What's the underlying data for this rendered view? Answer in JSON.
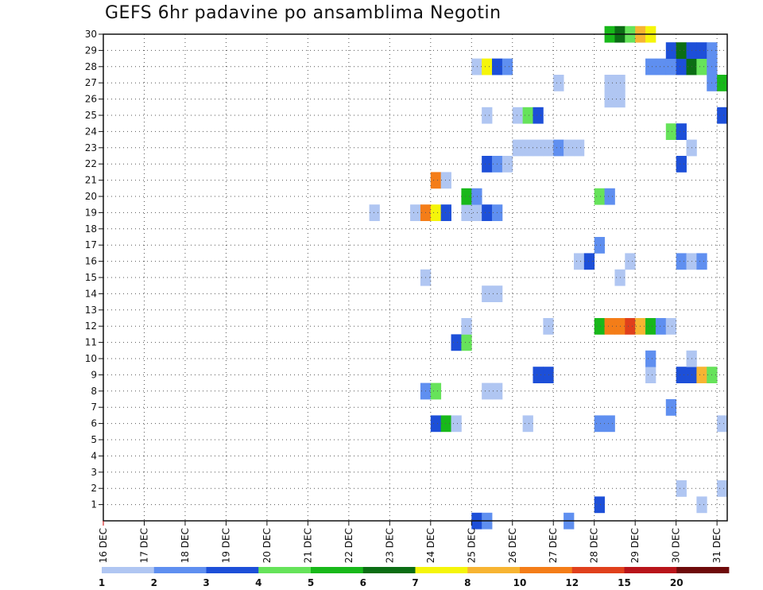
{
  "chart_data": {
    "type": "heatmap",
    "title": "GEFS 6hr padavine po ansamblima Negotin",
    "xlabel": "",
    "ylabel": "",
    "x_ticks": [
      "16 DEC",
      "17 DEC",
      "18 DEC",
      "19 DEC",
      "20 DEC",
      "21 DEC",
      "22 DEC",
      "23 DEC",
      "24 DEC",
      "25 DEC",
      "26 DEC",
      "27 DEC",
      "28 DEC",
      "29 DEC",
      "30 DEC",
      "31 DEC"
    ],
    "y_ticks": [
      1,
      2,
      3,
      4,
      5,
      6,
      7,
      8,
      9,
      10,
      11,
      12,
      13,
      14,
      15,
      16,
      17,
      18,
      19,
      20,
      21,
      22,
      23,
      24,
      25,
      26,
      27,
      28,
      29,
      30
    ],
    "xlim_days": [
      0,
      15.25
    ],
    "ylim": [
      0,
      30
    ],
    "grid": true,
    "colorbar": {
      "position": "bottom",
      "labels": [
        "1",
        "2",
        "3",
        "4",
        "5",
        "6",
        "7",
        "8",
        "10",
        "12",
        "15",
        "20"
      ],
      "colors": [
        "#b0c6f2",
        "#5f8ff0",
        "#1d4fd8",
        "#66e35a",
        "#18b81a",
        "#0b6d14",
        "#f5f50a",
        "#f7b432",
        "#f47d18",
        "#e0401c",
        "#b8141a",
        "#6e0a0a"
      ]
    },
    "cells_note": "member = ensemble member (1-30), start = days after 16 DEC 00z (6hr steps), class = 1-based colorbar class",
    "cells": [
      {
        "member": 0,
        "start": 9.0,
        "class": 3
      },
      {
        "member": 0,
        "start": 9.25,
        "class": 2
      },
      {
        "member": 0,
        "start": 11.25,
        "class": 2
      },
      {
        "member": 1,
        "start": 12.0,
        "class": 3
      },
      {
        "member": 1,
        "start": 14.5,
        "class": 1
      },
      {
        "member": 2,
        "start": 14.0,
        "class": 1
      },
      {
        "member": 2,
        "start": 15.0,
        "class": 1
      },
      {
        "member": 6,
        "start": 8.0,
        "class": 3
      },
      {
        "member": 6,
        "start": 8.25,
        "class": 5
      },
      {
        "member": 6,
        "start": 8.5,
        "class": 1
      },
      {
        "member": 6,
        "start": 10.25,
        "class": 1
      },
      {
        "member": 6,
        "start": 12.0,
        "class": 2
      },
      {
        "member": 6,
        "start": 12.25,
        "class": 2
      },
      {
        "member": 6,
        "start": 15.0,
        "class": 1
      },
      {
        "member": 7,
        "start": 13.75,
        "class": 2
      },
      {
        "member": 8,
        "start": 7.75,
        "class": 2
      },
      {
        "member": 8,
        "start": 8.0,
        "class": 4
      },
      {
        "member": 8,
        "start": 9.25,
        "class": 1
      },
      {
        "member": 8,
        "start": 9.5,
        "class": 1
      },
      {
        "member": 9,
        "start": 10.5,
        "class": 3
      },
      {
        "member": 9,
        "start": 10.75,
        "class": 3
      },
      {
        "member": 9,
        "start": 13.25,
        "class": 1
      },
      {
        "member": 9,
        "start": 14.0,
        "class": 3
      },
      {
        "member": 9,
        "start": 14.25,
        "class": 3
      },
      {
        "member": 9,
        "start": 14.5,
        "class": 8
      },
      {
        "member": 9,
        "start": 14.75,
        "class": 4
      },
      {
        "member": 10,
        "start": 13.25,
        "class": 2
      },
      {
        "member": 10,
        "start": 14.25,
        "class": 1
      },
      {
        "member": 11,
        "start": 8.5,
        "class": 3
      },
      {
        "member": 11,
        "start": 8.75,
        "class": 4
      },
      {
        "member": 12,
        "start": 8.75,
        "class": 1
      },
      {
        "member": 12,
        "start": 10.75,
        "class": 1
      },
      {
        "member": 12,
        "start": 12.0,
        "class": 5
      },
      {
        "member": 12,
        "start": 12.25,
        "class": 9
      },
      {
        "member": 12,
        "start": 12.5,
        "class": 9
      },
      {
        "member": 12,
        "start": 12.75,
        "class": 10
      },
      {
        "member": 12,
        "start": 13.0,
        "class": 8
      },
      {
        "member": 12,
        "start": 13.25,
        "class": 5
      },
      {
        "member": 12,
        "start": 13.5,
        "class": 2
      },
      {
        "member": 12,
        "start": 13.75,
        "class": 1
      },
      {
        "member": 14,
        "start": 9.25,
        "class": 1
      },
      {
        "member": 14,
        "start": 9.5,
        "class": 1
      },
      {
        "member": 15,
        "start": 7.75,
        "class": 1
      },
      {
        "member": 15,
        "start": 12.5,
        "class": 1
      },
      {
        "member": 16,
        "start": 11.5,
        "class": 1
      },
      {
        "member": 16,
        "start": 11.75,
        "class": 3
      },
      {
        "member": 16,
        "start": 12.75,
        "class": 1
      },
      {
        "member": 16,
        "start": 14.0,
        "class": 2
      },
      {
        "member": 16,
        "start": 14.25,
        "class": 1
      },
      {
        "member": 16,
        "start": 14.5,
        "class": 2
      },
      {
        "member": 17,
        "start": 12.0,
        "class": 2
      },
      {
        "member": 19,
        "start": 6.5,
        "class": 1
      },
      {
        "member": 19,
        "start": 7.5,
        "class": 1
      },
      {
        "member": 19,
        "start": 7.75,
        "class": 9
      },
      {
        "member": 19,
        "start": 8.0,
        "class": 7
      },
      {
        "member": 19,
        "start": 8.25,
        "class": 3
      },
      {
        "member": 19,
        "start": 8.75,
        "class": 1
      },
      {
        "member": 19,
        "start": 9.0,
        "class": 1
      },
      {
        "member": 19,
        "start": 9.25,
        "class": 3
      },
      {
        "member": 19,
        "start": 9.5,
        "class": 2
      },
      {
        "member": 20,
        "start": 8.75,
        "class": 5
      },
      {
        "member": 20,
        "start": 9.0,
        "class": 2
      },
      {
        "member": 20,
        "start": 12.0,
        "class": 4
      },
      {
        "member": 20,
        "start": 12.25,
        "class": 2
      },
      {
        "member": 21,
        "start": 8.0,
        "class": 9
      },
      {
        "member": 21,
        "start": 8.25,
        "class": 1
      },
      {
        "member": 22,
        "start": 9.25,
        "class": 3
      },
      {
        "member": 22,
        "start": 9.5,
        "class": 2
      },
      {
        "member": 22,
        "start": 9.75,
        "class": 1
      },
      {
        "member": 22,
        "start": 14.0,
        "class": 3
      },
      {
        "member": 23,
        "start": 10.0,
        "class": 1
      },
      {
        "member": 23,
        "start": 10.25,
        "class": 1
      },
      {
        "member": 23,
        "start": 10.5,
        "class": 1
      },
      {
        "member": 23,
        "start": 10.75,
        "class": 1
      },
      {
        "member": 23,
        "start": 11.0,
        "class": 2
      },
      {
        "member": 23,
        "start": 11.25,
        "class": 1
      },
      {
        "member": 23,
        "start": 11.5,
        "class": 1
      },
      {
        "member": 23,
        "start": 14.25,
        "class": 1
      },
      {
        "member": 24,
        "start": 13.75,
        "class": 4
      },
      {
        "member": 24,
        "start": 14.0,
        "class": 3
      },
      {
        "member": 25,
        "start": 9.25,
        "class": 1
      },
      {
        "member": 25,
        "start": 10.0,
        "class": 1
      },
      {
        "member": 25,
        "start": 10.25,
        "class": 4
      },
      {
        "member": 25,
        "start": 10.5,
        "class": 3
      },
      {
        "member": 25,
        "start": 15.0,
        "class": 3
      },
      {
        "member": 26,
        "start": 12.25,
        "class": 1
      },
      {
        "member": 26,
        "start": 12.5,
        "class": 1
      },
      {
        "member": 27,
        "start": 11.0,
        "class": 1
      },
      {
        "member": 27,
        "start": 12.25,
        "class": 1
      },
      {
        "member": 27,
        "start": 12.5,
        "class": 1
      },
      {
        "member": 27,
        "start": 14.75,
        "class": 2
      },
      {
        "member": 27,
        "start": 15.0,
        "class": 5
      },
      {
        "member": 28,
        "start": 9.0,
        "class": 1
      },
      {
        "member": 28,
        "start": 9.25,
        "class": 7
      },
      {
        "member": 28,
        "start": 9.5,
        "class": 3
      },
      {
        "member": 28,
        "start": 9.75,
        "class": 2
      },
      {
        "member": 28,
        "start": 13.25,
        "class": 2
      },
      {
        "member": 28,
        "start": 13.5,
        "class": 2
      },
      {
        "member": 28,
        "start": 13.75,
        "class": 2
      },
      {
        "member": 28,
        "start": 14.0,
        "class": 3
      },
      {
        "member": 28,
        "start": 14.25,
        "class": 6
      },
      {
        "member": 28,
        "start": 14.5,
        "class": 4
      },
      {
        "member": 28,
        "start": 14.75,
        "class": 2
      },
      {
        "member": 29,
        "start": 13.75,
        "class": 3
      },
      {
        "member": 29,
        "start": 14.0,
        "class": 6
      },
      {
        "member": 29,
        "start": 14.25,
        "class": 3
      },
      {
        "member": 29,
        "start": 14.5,
        "class": 3
      },
      {
        "member": 29,
        "start": 14.75,
        "class": 2
      },
      {
        "member": 30,
        "start": 12.25,
        "class": 5
      },
      {
        "member": 30,
        "start": 12.5,
        "class": 6
      },
      {
        "member": 30,
        "start": 12.75,
        "class": 4
      },
      {
        "member": 30,
        "start": 13.0,
        "class": 8
      },
      {
        "member": 30,
        "start": 13.25,
        "class": 7
      }
    ]
  }
}
